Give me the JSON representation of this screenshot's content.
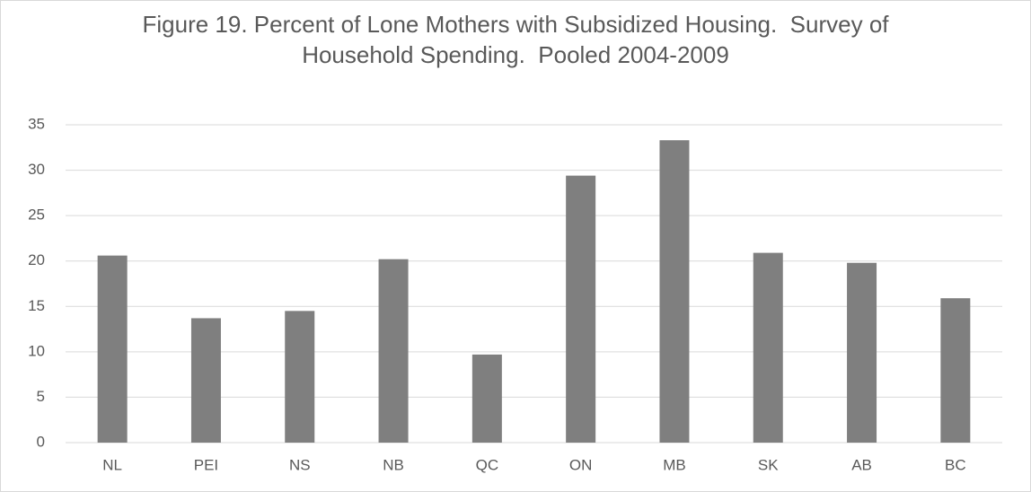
{
  "chart_data": {
    "type": "bar",
    "title": "Figure 19. Percent of Lone Mothers with Subsidized Housing.  Survey of Household Spending.  Pooled 2004-2009",
    "categories": [
      "NL",
      "PEI",
      "NS",
      "NB",
      "QC",
      "ON",
      "MB",
      "SK",
      "AB",
      "BC"
    ],
    "values": [
      20.6,
      13.7,
      14.5,
      20.2,
      9.7,
      29.4,
      33.3,
      20.9,
      19.8,
      15.9
    ],
    "color": "#7f7f7f",
    "ylim": [
      0,
      35
    ],
    "yticks": [
      0,
      5,
      10,
      15,
      20,
      25,
      30,
      35
    ],
    "grid": true
  }
}
